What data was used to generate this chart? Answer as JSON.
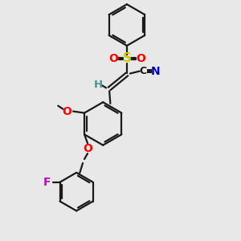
{
  "background_color": "#e8e8e8",
  "bond_color": "#1a1a1a",
  "atom_colors": {
    "O": "#ff0000",
    "S": "#cccc00",
    "N": "#0000cd",
    "F": "#cc00cc",
    "H": "#4a9090",
    "C": "#1a1a1a"
  },
  "figsize": [
    3.0,
    3.0
  ],
  "dpi": 100,
  "lw": 1.6
}
